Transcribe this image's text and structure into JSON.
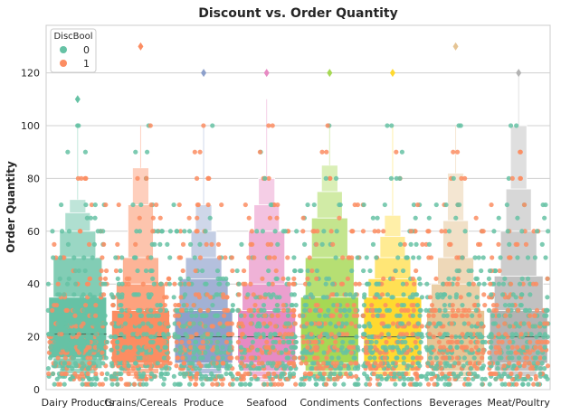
{
  "chart_data": {
    "type": "boxen",
    "title": "Discount vs. Order Quantity",
    "xlabel": "",
    "ylabel": "Order Quantity",
    "ylim": [
      0,
      138
    ],
    "yticks": [
      0,
      20,
      40,
      60,
      80,
      100,
      120
    ],
    "grid": true,
    "legend": {
      "title": "DiscBool",
      "position": "top-left",
      "entries": [
        "0",
        "1"
      ]
    },
    "hue_colors": {
      "0": "#66c2a5",
      "1": "#fc8d62"
    },
    "categories": [
      "Dairy Products",
      "Grains/Cereals",
      "Produce",
      "Seafood",
      "Condiments",
      "Confections",
      "Beverages",
      "Meat/Poultry"
    ],
    "box_colors": [
      "#66c2a5",
      "#fc8d62",
      "#8da0cb",
      "#e78ac3",
      "#a6d854",
      "#ffd92f",
      "#e5c494",
      "#b3b3b3"
    ],
    "boxen": [
      {
        "median": 21,
        "levels": [
          [
            12,
            35
          ],
          [
            8,
            50
          ],
          [
            6,
            60
          ],
          [
            5,
            67
          ],
          [
            4,
            72
          ]
        ],
        "outliers": [
          110
        ],
        "dmax": 100
      },
      {
        "median": 20,
        "levels": [
          [
            10,
            30
          ],
          [
            8,
            40
          ],
          [
            6,
            50
          ],
          [
            5,
            70
          ],
          [
            4,
            84
          ]
        ],
        "outliers": [
          130
        ],
        "dmax": 100
      },
      {
        "median": 20,
        "levels": [
          [
            10,
            30
          ],
          [
            8,
            42
          ],
          [
            6,
            50
          ],
          [
            5,
            60
          ],
          [
            4,
            70
          ]
        ],
        "outliers": [
          120
        ],
        "dmax": 100
      },
      {
        "median": 20,
        "levels": [
          [
            10,
            30
          ],
          [
            7,
            40
          ],
          [
            5,
            60
          ],
          [
            4,
            70
          ],
          [
            3,
            80
          ]
        ],
        "outliers": [
          120
        ],
        "dmax": 110
      },
      {
        "median": 20,
        "levels": [
          [
            10,
            35
          ],
          [
            7,
            50
          ],
          [
            5,
            65
          ],
          [
            4,
            75
          ],
          [
            3,
            85
          ]
        ],
        "outliers": [
          120
        ],
        "dmax": 100
      },
      {
        "median": 20,
        "levels": [
          [
            10,
            35
          ],
          [
            7,
            42
          ],
          [
            5,
            50
          ],
          [
            4,
            58
          ],
          [
            3,
            66
          ]
        ],
        "outliers": [
          120
        ],
        "dmax": 100
      },
      {
        "median": 20,
        "levels": [
          [
            10,
            30
          ],
          [
            7,
            40
          ],
          [
            5,
            50
          ],
          [
            4,
            64
          ],
          [
            3,
            82
          ]
        ],
        "outliers": [
          130
        ],
        "dmax": 100
      },
      {
        "median": 20,
        "levels": [
          [
            10,
            30
          ],
          [
            7,
            43
          ],
          [
            5,
            60
          ],
          [
            4,
            76
          ],
          [
            3,
            100
          ]
        ],
        "outliers": [
          120
        ],
        "dmax": 120
      }
    ]
  }
}
